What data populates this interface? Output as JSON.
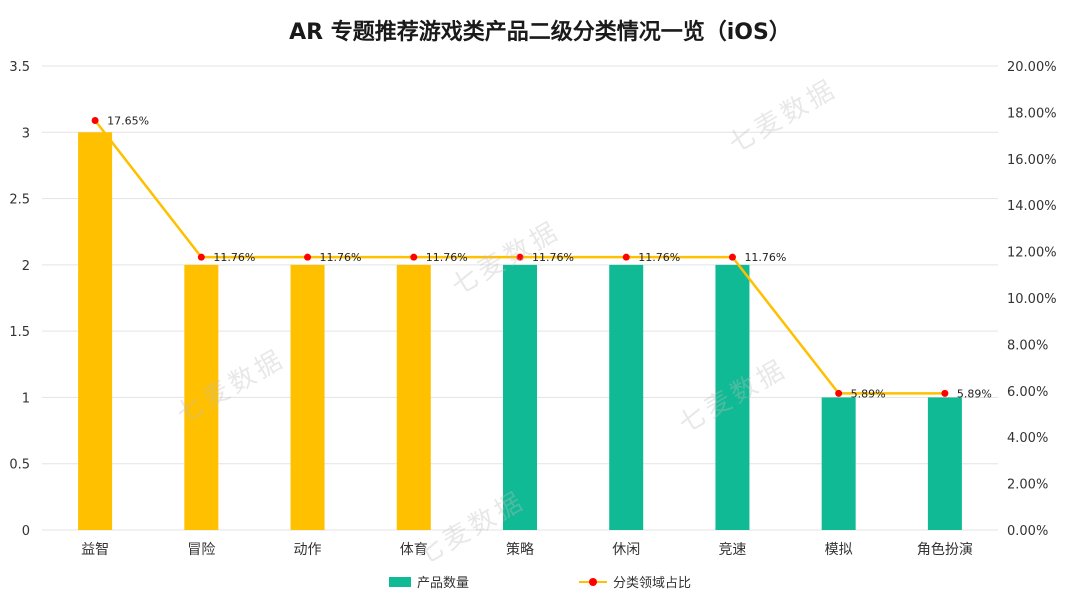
{
  "chart_data": {
    "type": "bar",
    "title": "AR 专题推荐游戏类产品二级分类情况一览（iOS）",
    "categories": [
      "益智",
      "冒险",
      "动作",
      "体育",
      "策略",
      "休闲",
      "竞速",
      "模拟",
      "角色扮演"
    ],
    "series": [
      {
        "name": "产品数量",
        "type": "bar",
        "axis": "left",
        "values": [
          3,
          2,
          2,
          2,
          2,
          2,
          2,
          1,
          1
        ],
        "colors": [
          "#FFC000",
          "#FFC000",
          "#FFC000",
          "#FFC000",
          "#10BA94",
          "#10BA94",
          "#10BA94",
          "#10BA94",
          "#10BA94"
        ]
      },
      {
        "name": "分类领域占比",
        "type": "line",
        "axis": "right",
        "values": [
          17.65,
          11.76,
          11.76,
          11.76,
          11.76,
          11.76,
          11.76,
          5.89,
          5.89
        ],
        "labels": [
          "17.65%",
          "11.76%",
          "11.76%",
          "11.76%",
          "11.76%",
          "11.76%",
          "11.76%",
          "5.89%",
          "5.89%"
        ],
        "color": "#FFC000",
        "marker_color": "#FF0000"
      }
    ],
    "y_left": {
      "ylim": [
        0,
        3.5
      ],
      "ticks": [
        "0",
        "0.5",
        "1",
        "1.5",
        "2",
        "2.5",
        "3",
        "3.5"
      ]
    },
    "y_right": {
      "ylim": [
        0,
        20
      ],
      "ticks": [
        "0.00%",
        "2.00%",
        "4.00%",
        "6.00%",
        "8.00%",
        "10.00%",
        "12.00%",
        "14.00%",
        "16.00%",
        "18.00%",
        "20.00%"
      ]
    },
    "grid": true,
    "legend_position": "bottom"
  },
  "legend": {
    "bar_label": "产品数量",
    "line_label": "分类领域占比",
    "bar_color": "#10BA94",
    "line_color": "#FFC000",
    "marker_color": "#FF0000"
  },
  "watermark": "七麦数据"
}
